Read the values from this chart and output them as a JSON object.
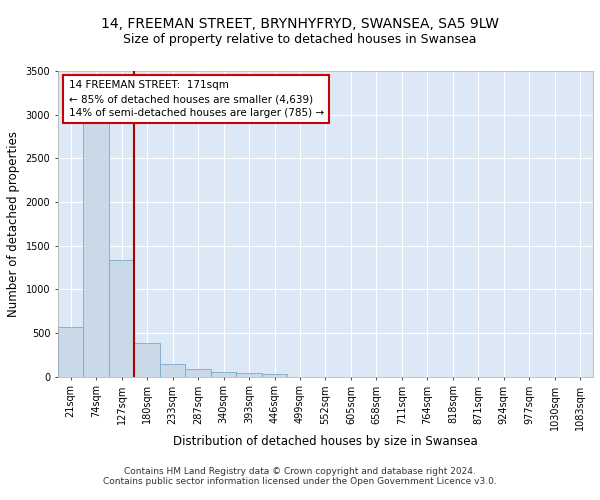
{
  "title1": "14, FREEMAN STREET, BRYNHYFRYD, SWANSEA, SA5 9LW",
  "title2": "Size of property relative to detached houses in Swansea",
  "xlabel": "Distribution of detached houses by size in Swansea",
  "ylabel": "Number of detached properties",
  "footer1": "Contains HM Land Registry data © Crown copyright and database right 2024.",
  "footer2": "Contains public sector information licensed under the Open Government Licence v3.0.",
  "categories": [
    "21sqm",
    "74sqm",
    "127sqm",
    "180sqm",
    "233sqm",
    "287sqm",
    "340sqm",
    "393sqm",
    "446sqm",
    "499sqm",
    "552sqm",
    "605sqm",
    "658sqm",
    "711sqm",
    "764sqm",
    "818sqm",
    "871sqm",
    "924sqm",
    "977sqm",
    "1030sqm",
    "1083sqm"
  ],
  "values": [
    570,
    2900,
    1330,
    390,
    150,
    90,
    55,
    45,
    35,
    0,
    0,
    0,
    0,
    0,
    0,
    0,
    0,
    0,
    0,
    0,
    0
  ],
  "bar_color": "#c9d9e8",
  "bar_edge_color": "#7aaac8",
  "vline_color": "#aa0000",
  "vline_x": 2.5,
  "annotation_line1": "14 FREEMAN STREET:  171sqm",
  "annotation_line2": "← 85% of detached houses are smaller (4,639)",
  "annotation_line3": "14% of semi-detached houses are larger (785) →",
  "annotation_box_color": "#cc0000",
  "ylim_max": 3500,
  "yticks": [
    0,
    500,
    1000,
    1500,
    2000,
    2500,
    3000,
    3500
  ],
  "bg_color": "#dce8f5",
  "grid_color": "#ffffff",
  "title1_fontsize": 10,
  "title2_fontsize": 9,
  "axis_label_fontsize": 8.5,
  "tick_fontsize": 7,
  "ann_fontsize": 7.5,
  "footer_fontsize": 6.5
}
